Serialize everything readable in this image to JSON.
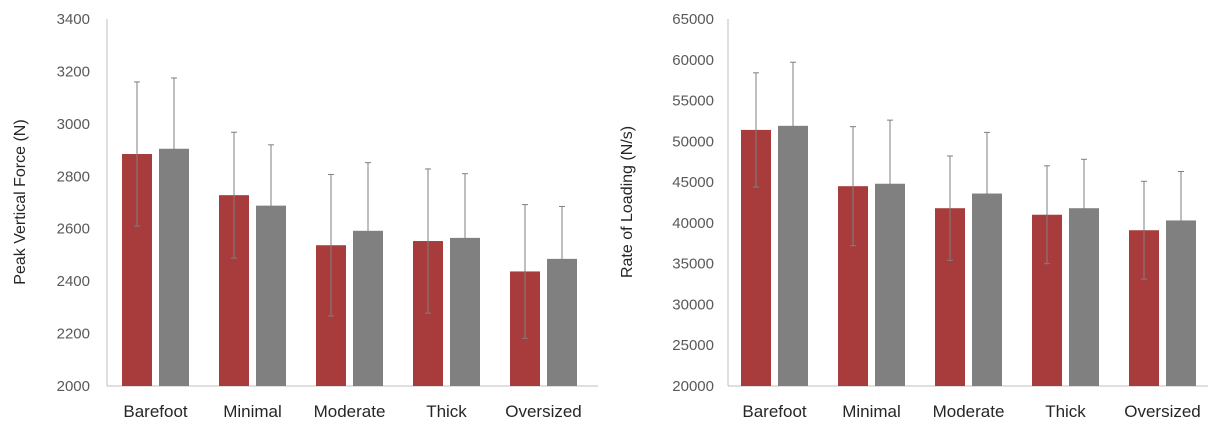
{
  "chart_data": [
    {
      "type": "bar",
      "title": "",
      "xlabel": "",
      "ylabel": "Peak Vertical Force (N)",
      "ylim": [
        2000,
        3400
      ],
      "yticks": [
        2000,
        2200,
        2400,
        2600,
        2800,
        3000,
        3200,
        3400
      ],
      "grid": false,
      "legend": "none",
      "categories": [
        "Barefoot",
        "Minimal",
        "Moderate",
        "Thick",
        "Oversized"
      ],
      "series": [
        {
          "color": "#a83c3c",
          "values": [
            2885,
            2728,
            2537,
            2553,
            2437
          ],
          "error": [
            275,
            240,
            270,
            275,
            255
          ]
        },
        {
          "color": "#808080",
          "values": [
            2905,
            2688,
            2592,
            2565,
            2485
          ],
          "error": [
            270,
            232,
            260,
            245,
            200
          ]
        }
      ]
    },
    {
      "type": "bar",
      "title": "",
      "xlabel": "",
      "ylabel": "Rate of Loading (N/s)",
      "ylim": [
        20000,
        65000
      ],
      "yticks": [
        20000,
        25000,
        30000,
        35000,
        40000,
        45000,
        50000,
        55000,
        60000,
        65000
      ],
      "grid": false,
      "legend": "none",
      "categories": [
        "Barefoot",
        "Minimal",
        "Moderate",
        "Thick",
        "Oversized"
      ],
      "series": [
        {
          "color": "#a83c3c",
          "values": [
            51400,
            44500,
            41800,
            41000,
            39100
          ],
          "error": [
            7000,
            7300,
            6400,
            6000,
            6000
          ]
        },
        {
          "color": "#808080",
          "values": [
            51900,
            44800,
            43600,
            41800,
            40300
          ],
          "error": [
            7800,
            7800,
            7500,
            6000,
            6000
          ]
        }
      ]
    }
  ]
}
